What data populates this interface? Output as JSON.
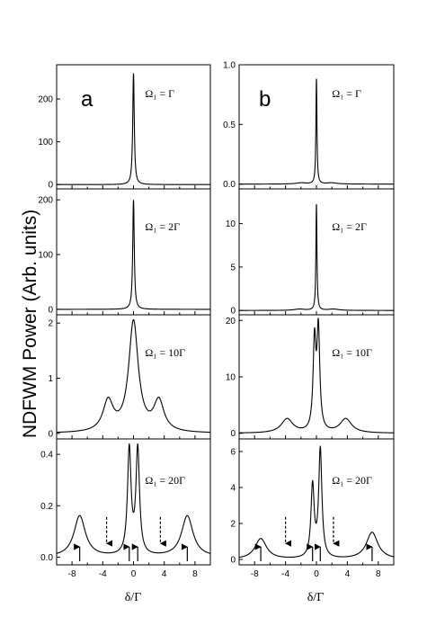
{
  "figure": {
    "ylabel": "NDFWM Power (Arb. units)",
    "xlabel": "δ/Γ",
    "columns": [
      {
        "letter": "a"
      },
      {
        "letter": "b"
      }
    ]
  },
  "chart_data": [
    {
      "type": "line",
      "column": "a",
      "label": "Ω₁ = Γ",
      "xlim": [
        -10,
        10
      ],
      "ylim": [
        -10,
        280
      ],
      "yticks": [
        0,
        100,
        200
      ],
      "xticks": [],
      "lineshape": {
        "baseline": 0,
        "center": {
          "pos": 0,
          "width": 0.12,
          "height": 260
        },
        "sidebands": []
      }
    },
    {
      "type": "line",
      "column": "a",
      "label": "Ω₁ = 2Γ",
      "xlim": [
        -10,
        10
      ],
      "ylim": [
        -10,
        220
      ],
      "yticks": [
        0,
        100,
        200
      ],
      "xticks": [],
      "lineshape": {
        "baseline": 0,
        "center": {
          "pos": 0,
          "width": 0.12,
          "height": 200
        },
        "sidebands": []
      }
    },
    {
      "type": "line",
      "column": "a",
      "label": "Ω₁ = 10Γ",
      "xlim": [
        -10,
        10
      ],
      "ylim": [
        -0.1,
        2.15
      ],
      "yticks": [
        0,
        1,
        2
      ],
      "xticks": [],
      "lineshape": {
        "baseline": 0,
        "center": {
          "pos": 0,
          "width": 0.75,
          "height": 2.0
        },
        "sidebands": [
          {
            "pos": -3.3,
            "width": 0.8,
            "height": 0.55
          },
          {
            "pos": 3.3,
            "width": 0.8,
            "height": 0.55
          }
        ]
      }
    },
    {
      "type": "line",
      "column": "a",
      "label": "Ω₁ = 20Γ",
      "xlim": [
        -10,
        10
      ],
      "ylim": [
        -0.03,
        0.46
      ],
      "yticks": [
        0,
        0.2,
        0.4
      ],
      "ytick_labels": [
        "0.0",
        "0.2",
        "0.4"
      ],
      "xticks": [
        -8,
        -4,
        0,
        4,
        8
      ],
      "lineshape": {
        "baseline": 0.0,
        "peaks": [
          {
            "pos": -0.55,
            "width": 0.28,
            "height": 0.41
          },
          {
            "pos": 0.55,
            "width": 0.28,
            "height": 0.41
          },
          {
            "pos": -7,
            "width": 0.9,
            "height": 0.16
          },
          {
            "pos": 7,
            "width": 0.9,
            "height": 0.16
          }
        ]
      },
      "solid_arrows": [
        -7,
        -0.55,
        0.55,
        7
      ],
      "dashed_arrows": [
        -3.5,
        3.5
      ]
    },
    {
      "type": "line",
      "column": "b",
      "label": "Ω₁ = Γ",
      "xlim": [
        -10,
        10
      ],
      "ylim": [
        -0.04,
        1.0
      ],
      "yticks": [
        0,
        0.5,
        1.0
      ],
      "ytick_labels": [
        "0.0",
        "0.5",
        "1.0"
      ],
      "xticks": [],
      "lineshape": {
        "baseline": 0,
        "center": {
          "pos": 0,
          "width": 0.08,
          "height": 0.88
        },
        "sidebands": [
          {
            "pos": -2,
            "width": 0.8,
            "height": 0.01
          },
          {
            "pos": 2,
            "width": 0.8,
            "height": 0.01
          }
        ]
      }
    },
    {
      "type": "line",
      "column": "b",
      "label": "Ω₁ = 2Γ",
      "xlim": [
        -10,
        10
      ],
      "ylim": [
        -0.5,
        14
      ],
      "yticks": [
        0,
        5,
        10
      ],
      "xticks": [],
      "lineshape": {
        "baseline": 0,
        "center": {
          "pos": 0,
          "width": 0.08,
          "height": 12.2
        },
        "sidebands": [
          {
            "pos": -2.2,
            "width": 0.8,
            "height": 0.15
          },
          {
            "pos": 2.2,
            "width": 0.8,
            "height": 0.15
          }
        ]
      }
    },
    {
      "type": "line",
      "column": "b",
      "label": "Ω₁ = 10Γ",
      "xlim": [
        -10,
        10
      ],
      "ylim": [
        -1,
        21
      ],
      "yticks": [
        0,
        10,
        20
      ],
      "xticks": [],
      "lineshape": {
        "baseline": 0,
        "peaks": [
          {
            "pos": -0.25,
            "width": 0.22,
            "height": 15.5
          },
          {
            "pos": 0.25,
            "width": 0.22,
            "height": 17.5
          },
          {
            "pos": -3.8,
            "width": 0.9,
            "height": 2.5
          },
          {
            "pos": 3.8,
            "width": 0.9,
            "height": 2.5
          }
        ]
      }
    },
    {
      "type": "line",
      "column": "b",
      "label": "Ω₁ = 20Γ",
      "xlim": [
        -10,
        10
      ],
      "ylim": [
        -0.3,
        6.7
      ],
      "yticks": [
        0,
        2,
        4,
        6
      ],
      "xticks": [
        -8,
        -4,
        0,
        4,
        8
      ],
      "lineshape": {
        "baseline": 0,
        "peaks": [
          {
            "pos": -0.5,
            "width": 0.25,
            "height": 4.0
          },
          {
            "pos": 0.5,
            "width": 0.25,
            "height": 6.0
          },
          {
            "pos": -7.2,
            "width": 0.9,
            "height": 1.15
          },
          {
            "pos": 7.2,
            "width": 0.9,
            "height": 1.5
          }
        ]
      },
      "solid_arrows": [
        -7.2,
        -0.5,
        0.5,
        7.2
      ],
      "dashed_arrows": [
        -4,
        2.2
      ]
    }
  ]
}
